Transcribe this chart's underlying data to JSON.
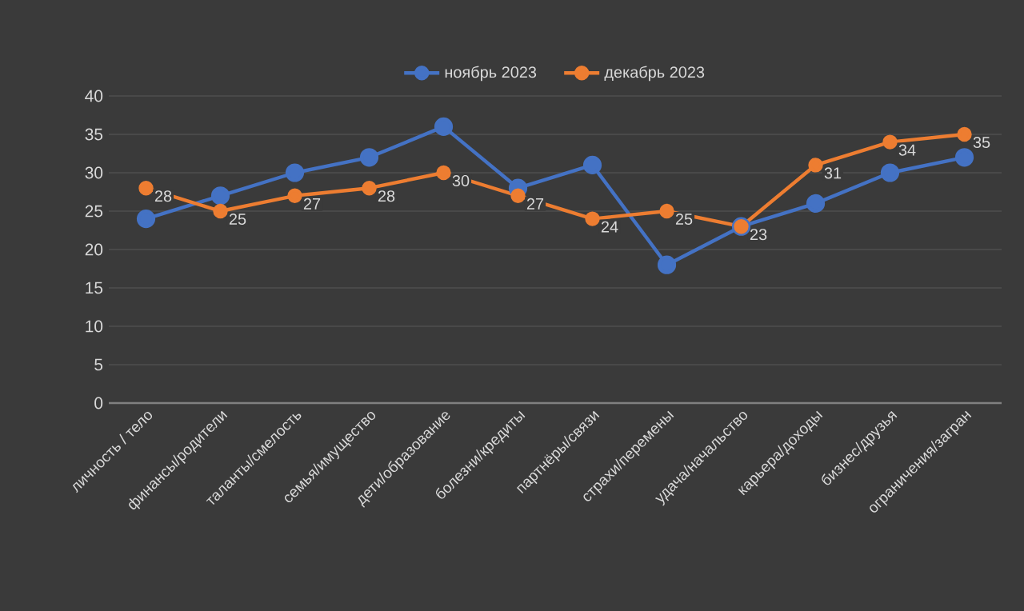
{
  "chart_data": {
    "type": "line",
    "categories": [
      "личность / тело",
      "финансы/родители",
      "таланты/смелость",
      "семья/имущество",
      "дети/образование",
      "болезни/кредиты",
      "партнёры/связи",
      "страхи/перемены",
      "удача/начальство",
      "карьера/доходы",
      "бизнес/друзья",
      "ограничения/загран"
    ],
    "series": [
      {
        "name": "ноябрь 2023",
        "color": "#4472c4",
        "values": [
          24,
          27,
          30,
          32,
          36,
          28,
          31,
          18,
          23,
          26,
          30,
          32
        ]
      },
      {
        "name": "декабрь 2023",
        "color": "#ed7d31",
        "values": [
          28,
          25,
          27,
          28,
          30,
          27,
          24,
          25,
          23,
          31,
          34,
          35
        ],
        "value_labels": [
          "28",
          "25",
          "27",
          "28",
          "30",
          "27",
          "24",
          "25",
          "23",
          "31",
          "34",
          "35"
        ]
      }
    ],
    "ylim": [
      0,
      40
    ],
    "yticks": [
      0,
      5,
      10,
      15,
      20,
      25,
      30,
      35,
      40
    ],
    "grid": "y",
    "legend": "top",
    "marker": "circle",
    "line_style": "solid"
  }
}
